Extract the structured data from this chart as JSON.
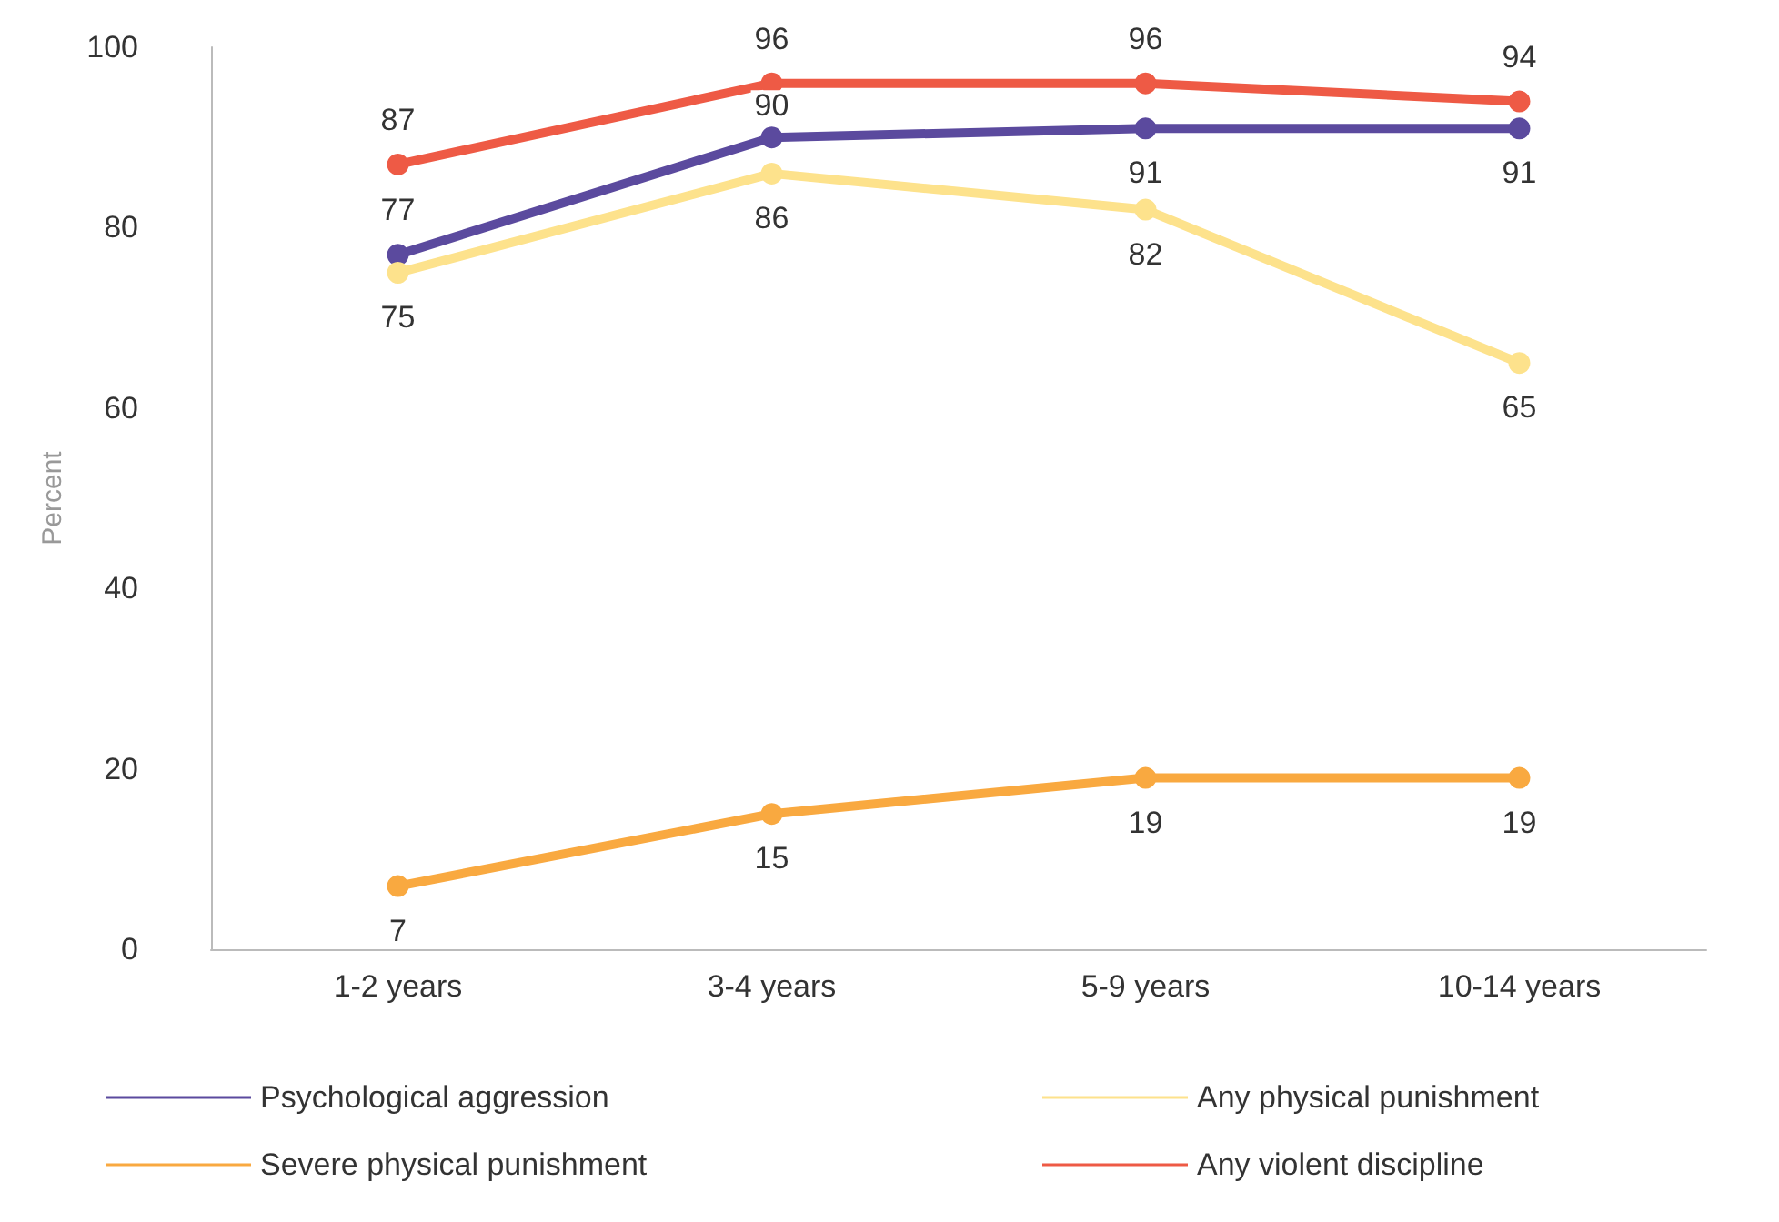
{
  "chart_data": {
    "type": "line",
    "ylabel": "Percent",
    "categories": [
      "1-2 years",
      "3-4 years",
      "5-9 years",
      "10-14 years"
    ],
    "series": [
      {
        "name": "Psychological aggression",
        "color": "#5b4a9e",
        "values": [
          77,
          90,
          91,
          91
        ]
      },
      {
        "name": "Any physical punishment",
        "color": "#fde28c",
        "values": [
          75,
          86,
          82,
          65
        ]
      },
      {
        "name": "Severe physical punishment",
        "color": "#f9a940",
        "values": [
          7,
          15,
          19,
          19
        ]
      },
      {
        "name": "Any violent discipline",
        "color": "#ee5a45",
        "values": [
          87,
          96,
          96,
          94
        ]
      }
    ],
    "ylim": [
      0,
      100
    ],
    "yticks": [
      0,
      20,
      40,
      60,
      80,
      100
    ],
    "grid": false,
    "legend": "bottom",
    "marker": "circle",
    "line_style": "solid",
    "data_labels": true
  }
}
